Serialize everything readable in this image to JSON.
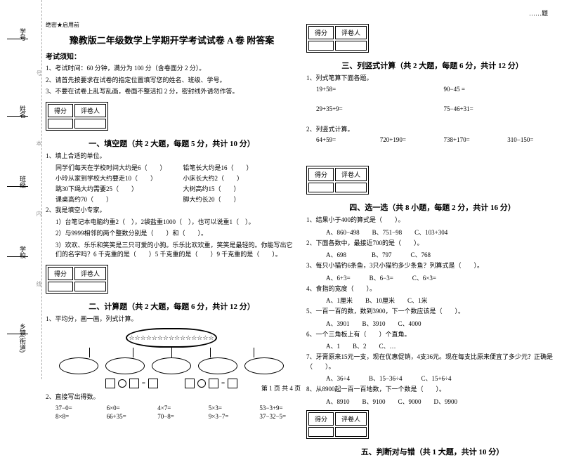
{
  "sidebar": {
    "labels": [
      "学号",
      "姓名",
      "班级",
      "学校",
      "乡镇(街道)"
    ],
    "dash": [
      "号",
      "本",
      "内",
      "线",
      "封"
    ]
  },
  "topright": "……题",
  "topmark": "绝密★启用前",
  "title": "豫教版二年级数学上学期开学考试试卷 A 卷 附答案",
  "notice_h": "考试须知：",
  "notice": [
    "1、考试时间：60 分钟，满分为 100 分（含卷面分 2 分）。",
    "2、请首先按要求在试卷的指定位置填写您的姓名、班级、学号。",
    "3、不要在试卷上乱写乱画，卷面不整洁扣 2 分，密封线外请勿作答。"
  ],
  "scorebox": {
    "c1": "得分",
    "c2": "评卷人"
  },
  "sec1": {
    "title": "一、填空题（共 2 大题，每题 5 分，共计 10 分）",
    "q1": "1、填上合适的单位。",
    "q1rows": [
      [
        "同学们每天在学校时间大约是6（　　）",
        "铅笔长大约是16（　　）"
      ],
      [
        "小玲从家到学校大约要走10（　　）",
        "小床长大约2（　　）"
      ],
      [
        "跳30下绳大约需要25（　　）",
        "大树高约15（　　）"
      ],
      [
        "课桌高约70（　　）",
        "脚大约长20（　　）"
      ]
    ],
    "q2": "2、我是填空小专家。",
    "q2lines": [
      "1）台笔记本电脑约重2（　），2袋盐重1000（　），也可以说重1（　）。",
      "2）与9999相邻的两个整数分别是（　　）和（　　）。",
      "3）欢欢、乐乐和笑笑是三只可爱的小狗。乐乐比欢欢重，笑笑是最轻的。你能写出它们的名字吗？6 千克重的是（　　）5 千克重的是（　　）9 千克重的是（　　）。"
    ]
  },
  "sec2": {
    "title": "二、计算题（共 2 大题，每题 6 分，共计 12 分）",
    "q1": "1、平均分，画一画，列式计算。",
    "stars": "☆☆☆☆☆☆☆☆☆☆☆☆☆☆☆",
    "q2": "2、直接写出得数。",
    "rows": [
      [
        "37−0=",
        "6×0=",
        "4×7=",
        "5×3=",
        "53−3+9="
      ],
      [
        "8×8=",
        "66+35=",
        "70−8=",
        "9×3−7=",
        "37−32−5="
      ]
    ]
  },
  "sec3": {
    "title": "三、列竖式计算（共 2 大题，每题 6 分，共计 12 分）",
    "q1": "1、列式笔算下面各题。",
    "rows": [
      [
        "19+58=",
        "90−45 ="
      ],
      [
        "29+35+9=",
        "75−46+31="
      ]
    ],
    "q2": "2、列竖式计算。",
    "row2": [
      "64+59=",
      "720+190=",
      "738+170=",
      "310−150="
    ]
  },
  "sec4": {
    "title": "四、选一选（共 8 小题，每题 2 分，共计 16 分）",
    "items": [
      {
        "q": "1、结果小于400的算式是（　　）。",
        "opts": "A、860−498　　B、751−98　　C、103+304"
      },
      {
        "q": "2、下面各数中，最接近700的是（　　）。",
        "opts": "A、698　　　　B、797　　　C、768"
      },
      {
        "q": "3、每只小猫钓6条鱼，3只小猫钓多少条鱼？列算式是（　　）。",
        "opts": "A、6+3=　　　B、6−3=　　　C、6×3="
      },
      {
        "q": "4、食指的宽度（　　）。",
        "opts": "A、1厘米　　B、10厘米　　C、1米"
      },
      {
        "q": "5、一百一百的数，数到3900，下一个数应该是（　　）。",
        "opts": "A、3901　　B、3910　　C、4000"
      },
      {
        "q": "6、一个三角板上有（　　）个直角。",
        "opts": "A、1　　B、2　　C、…"
      },
      {
        "q": "7、牙膏原来15元一支，现在优惠促销，4支36元。现在每支比原来便宜了多少元？正确是（　　）。",
        "opts": "A、36÷4　　　B、15−36÷4　　　C、15+6÷4"
      },
      {
        "q": "8、从8900起一百一百地数，下一个数是（　　）。",
        "opts": "A、8910　　B、9100　　C、9000　　D、9900"
      }
    ]
  },
  "sec5": {
    "title": "五、判断对与错（共 1 大题，共计 10 分）"
  },
  "footer": "第 1 页 共 4 页"
}
